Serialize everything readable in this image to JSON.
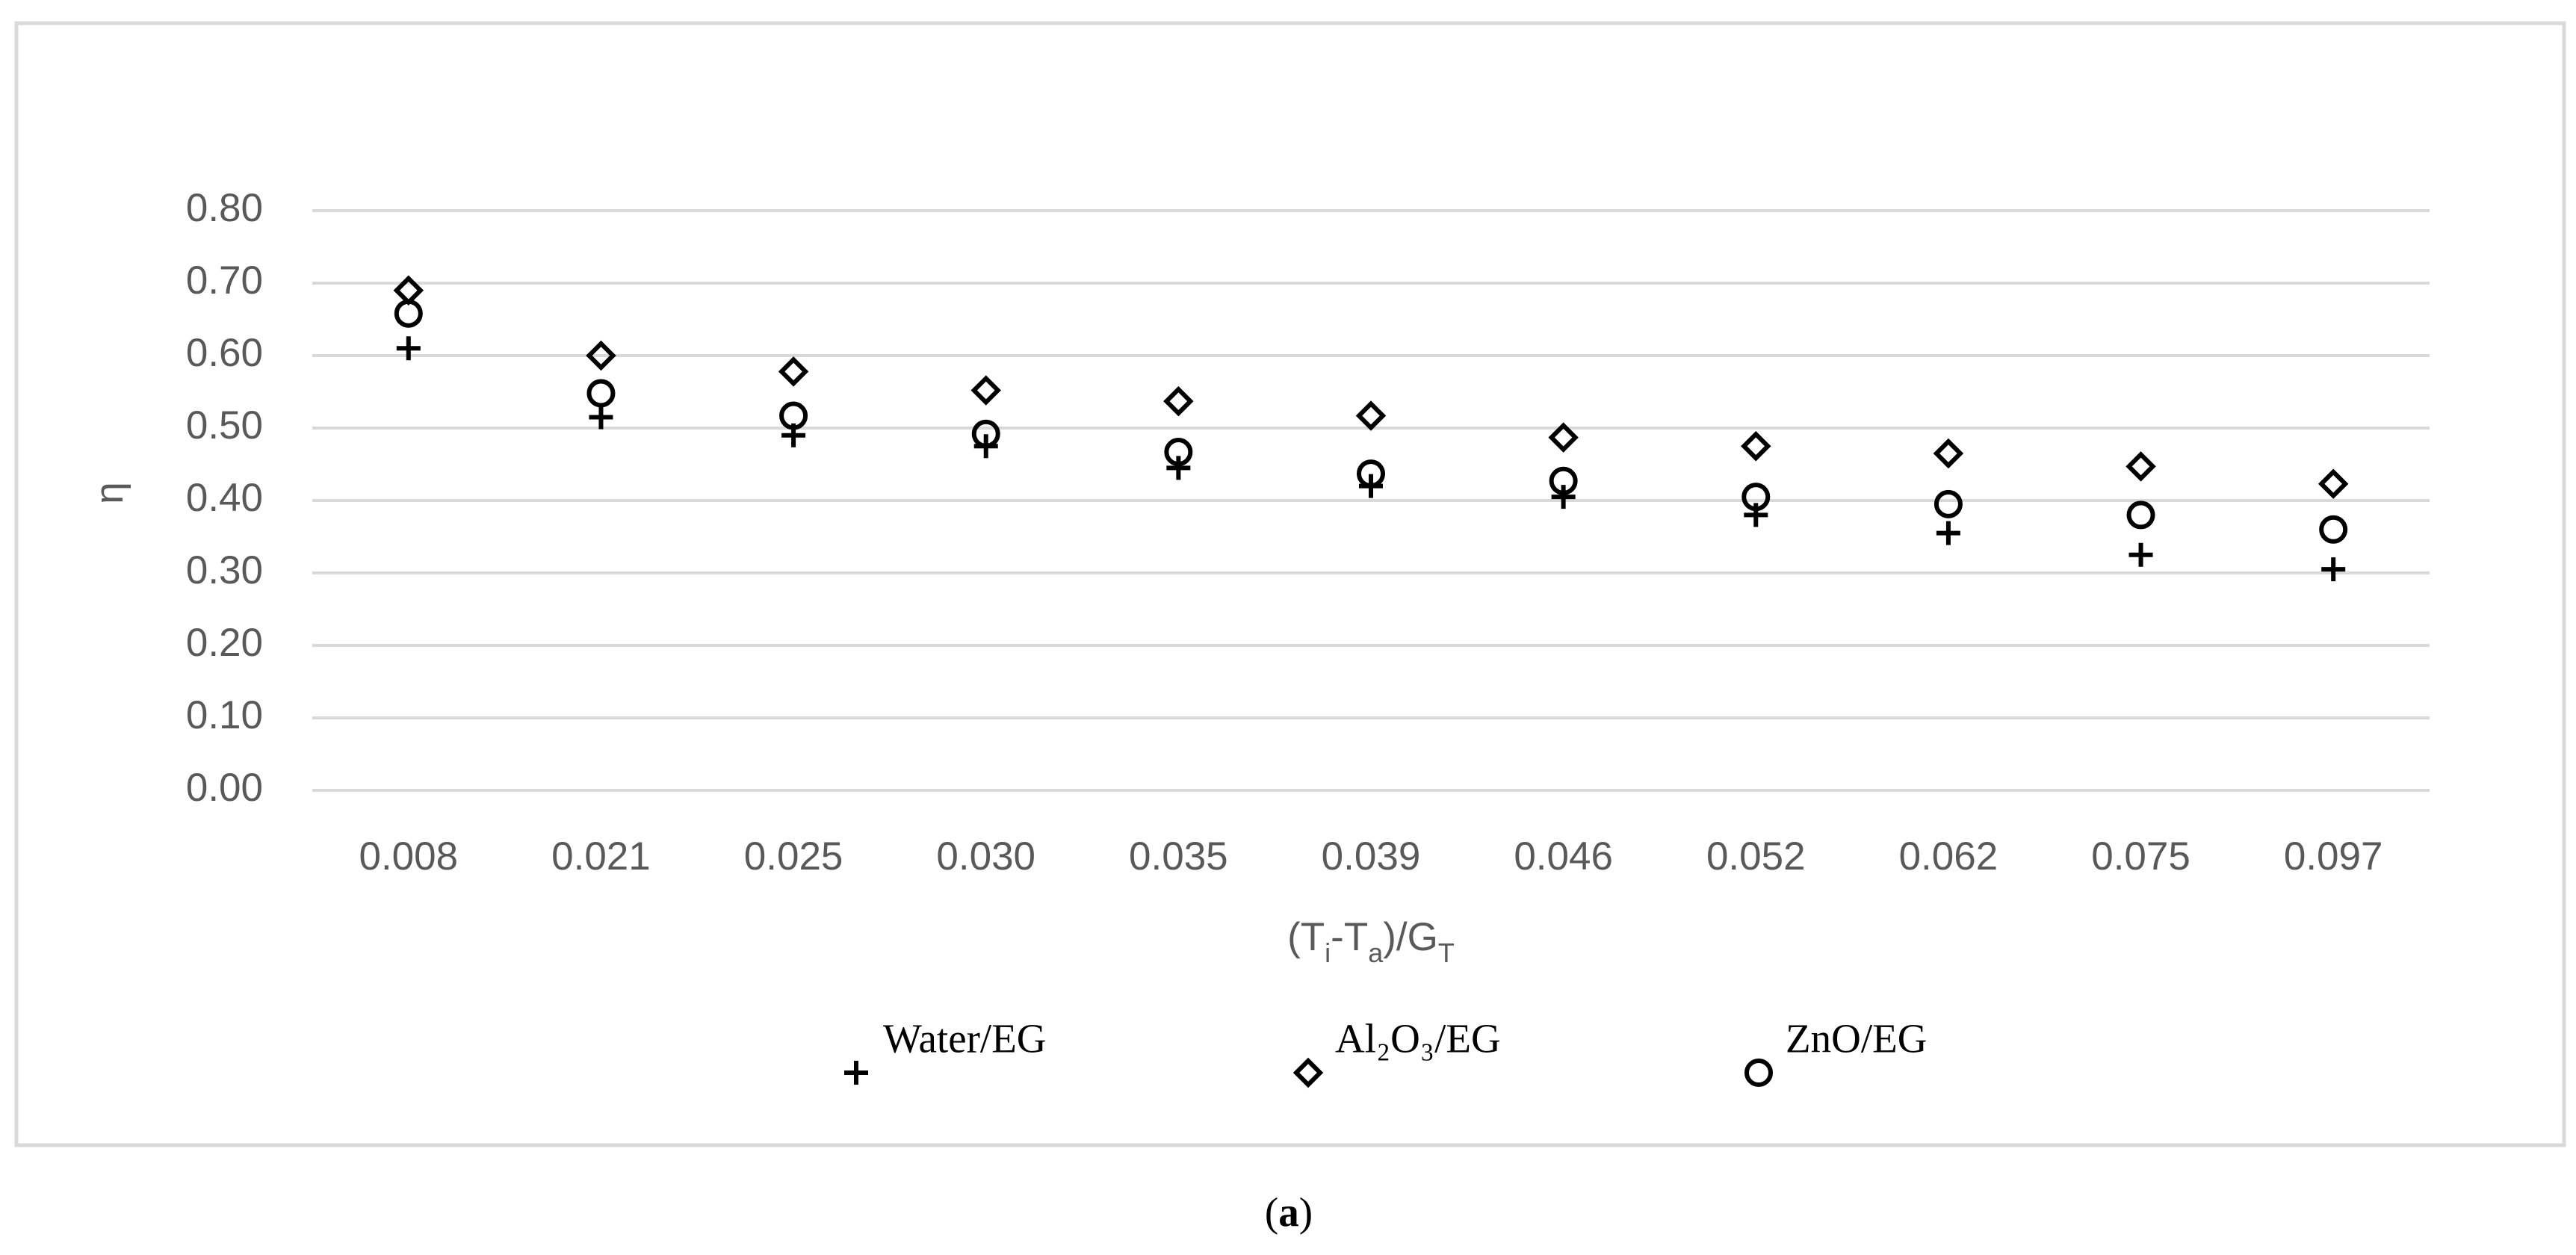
{
  "chart_data": {
    "type": "scatter",
    "ylabel": "η",
    "xlabel": [
      {
        "text": "(T"
      },
      {
        "text": "i",
        "sub": true
      },
      {
        "text": "-T"
      },
      {
        "text": "a",
        "sub": true
      },
      {
        "text": ")/G"
      },
      {
        "text": "T",
        "sub": true
      }
    ],
    "categories": [
      "0.008",
      "0.021",
      "0.025",
      "0.030",
      "0.035",
      "0.039",
      "0.046",
      "0.052",
      "0.062",
      "0.075",
      "0.097"
    ],
    "series": [
      {
        "name": "Water/EG",
        "marker": "plus",
        "color": "#000000",
        "values": [
          0.61,
          0.515,
          0.49,
          0.475,
          0.445,
          0.42,
          0.405,
          0.38,
          0.355,
          0.325,
          0.305
        ]
      },
      {
        "name": "Al₂O₃/EG",
        "marker": "diamond",
        "color": "#000000",
        "values": [
          0.69,
          0.6,
          0.578,
          0.552,
          0.537,
          0.517,
          0.487,
          0.475,
          0.465,
          0.447,
          0.423
        ]
      },
      {
        "name": "ZnO/EG",
        "marker": "circle",
        "color": "#000000",
        "values": [
          0.658,
          0.548,
          0.517,
          0.492,
          0.467,
          0.437,
          0.427,
          0.405,
          0.395,
          0.38,
          0.36
        ]
      }
    ],
    "ylim": [
      0,
      0.8
    ],
    "yticks": [
      {
        "value": 0,
        "label": "0.00"
      },
      {
        "value": 0.1,
        "label": "0.10"
      },
      {
        "value": 0.2,
        "label": "0.20"
      },
      {
        "value": 0.3,
        "label": "0.30"
      },
      {
        "value": 0.4,
        "label": "0.40"
      },
      {
        "value": 0.5,
        "label": "0.50"
      },
      {
        "value": 0.6,
        "label": "0.60"
      },
      {
        "value": 0.7,
        "label": "0.70"
      },
      {
        "value": 0.8,
        "label": "0.80"
      }
    ],
    "grid": true,
    "legend": "bottom",
    "caption": [
      {
        "text": "("
      },
      {
        "text": "a",
        "bold": true
      },
      {
        "text": ")"
      }
    ]
  }
}
